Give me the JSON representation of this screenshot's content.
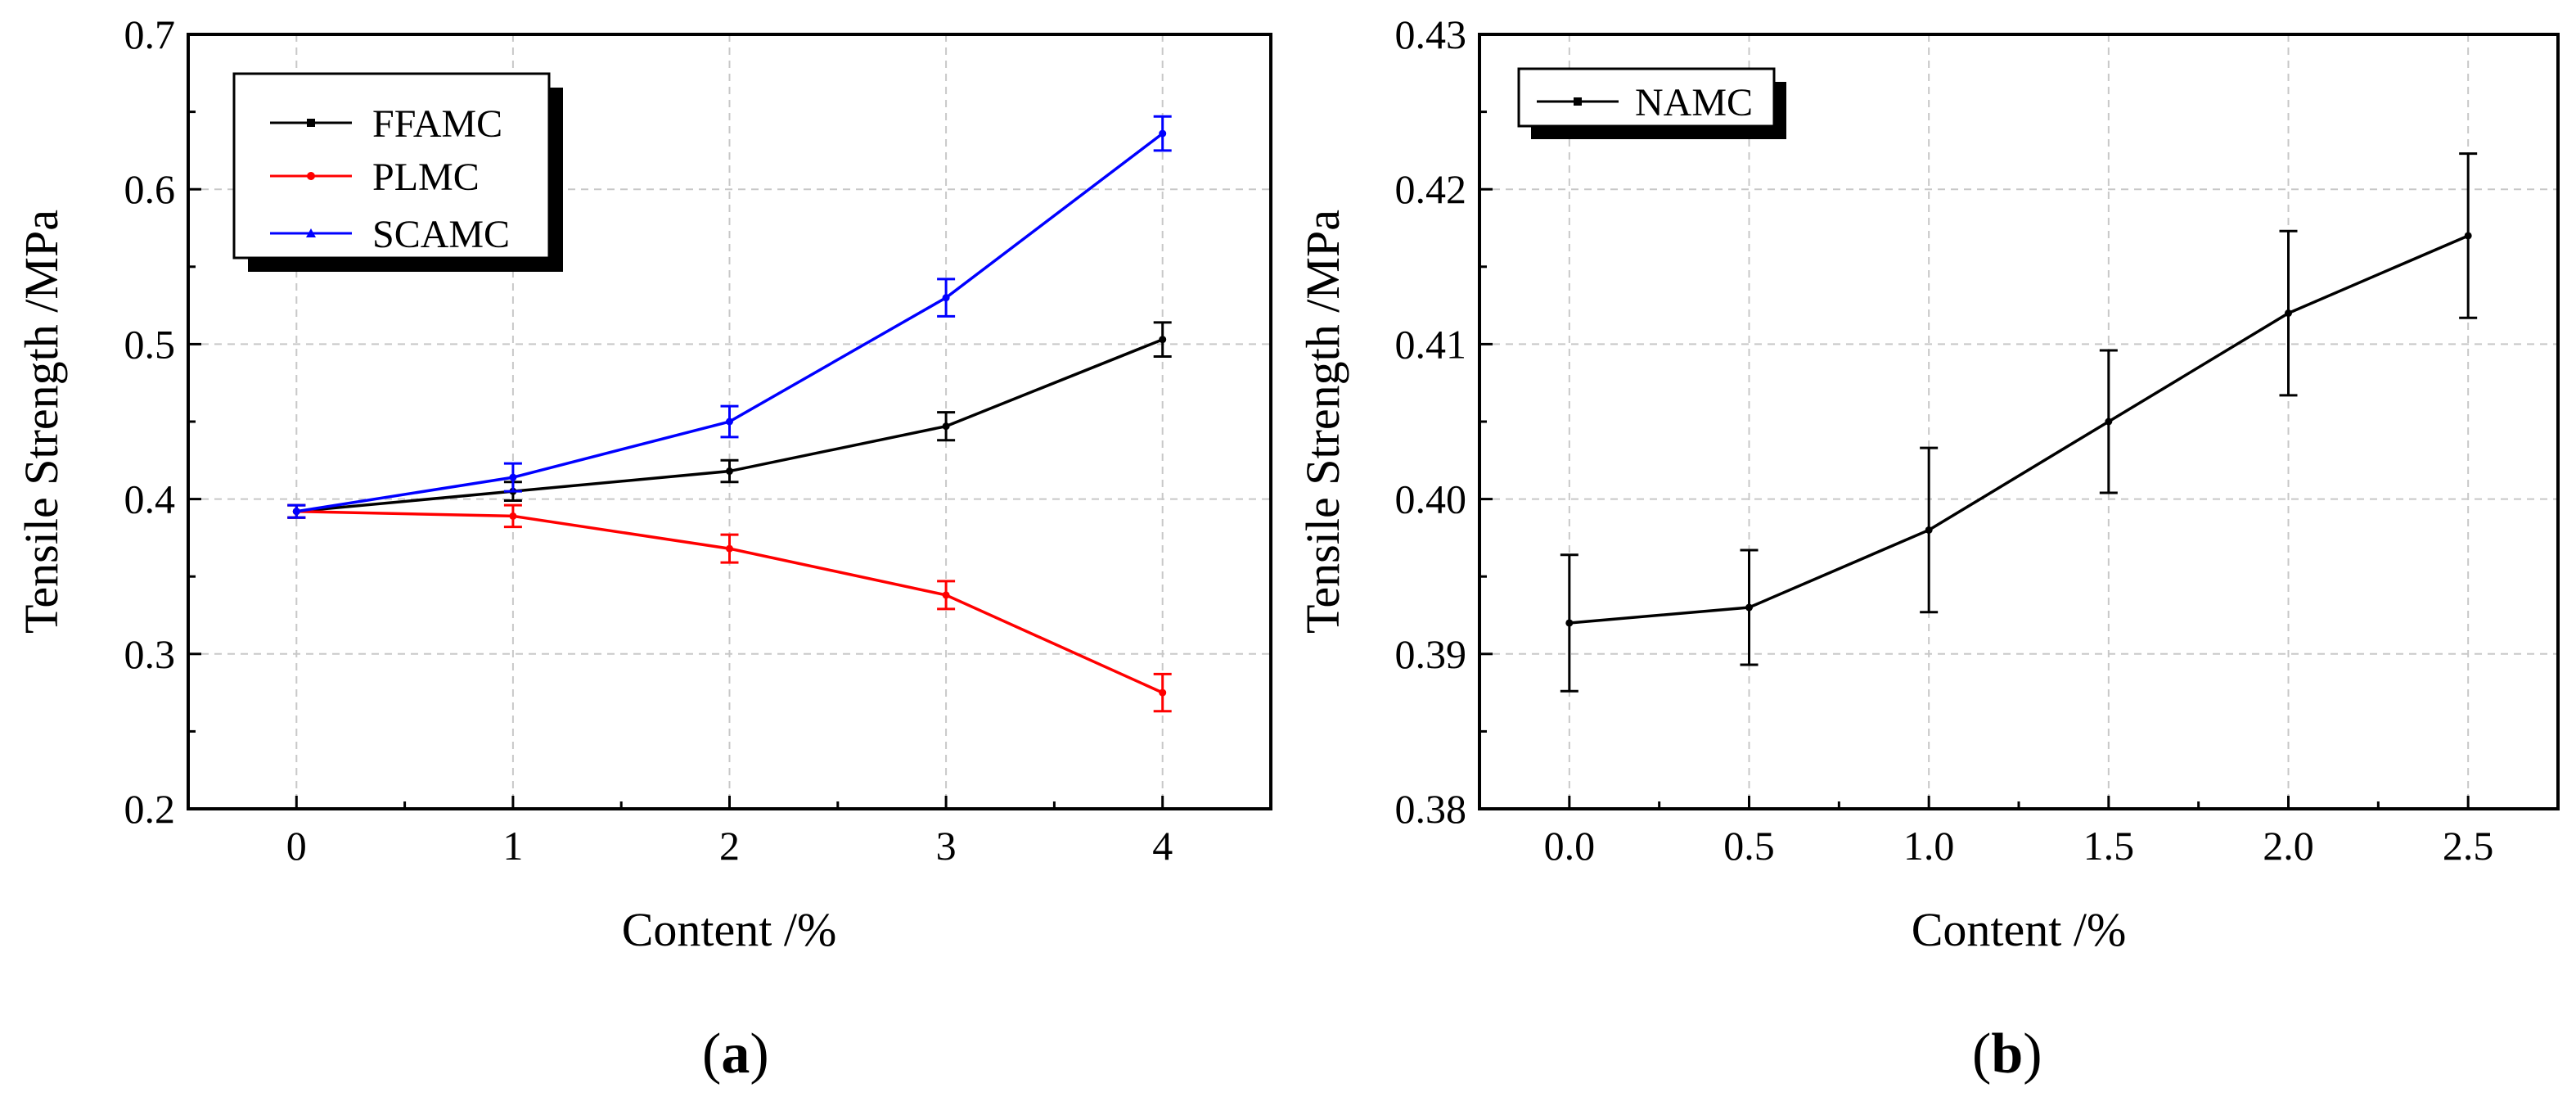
{
  "colors": {
    "ffamc": "#000000",
    "plmc": "#ff0000",
    "scamc": "#0000ff",
    "namc": "#000000",
    "grid": "#c8c8c8"
  },
  "chart_data": [
    {
      "panel_label": "a",
      "type": "line",
      "xlabel": "Content /%",
      "ylabel": "Tensile Strength /MPa",
      "xlim": [
        -0.5,
        4.5
      ],
      "ylim": [
        0.2,
        0.7
      ],
      "x_ticks": [
        0,
        1,
        2,
        3,
        4
      ],
      "x_tick_labels": [
        "0",
        "1",
        "2",
        "3",
        "4"
      ],
      "y_ticks": [
        0.2,
        0.3,
        0.4,
        0.5,
        0.6,
        0.7
      ],
      "y_tick_labels": [
        "0.2",
        "0.3",
        "0.4",
        "0.5",
        "0.6",
        "0.7"
      ],
      "grid": true,
      "legend_position": "top-left",
      "x": [
        0,
        1,
        2,
        3,
        4
      ],
      "series": [
        {
          "name": "FFAMC",
          "color_key": "ffamc",
          "values": [
            0.392,
            0.405,
            0.418,
            0.447,
            0.503
          ],
          "errors": [
            0.004,
            0.006,
            0.007,
            0.009,
            0.011
          ]
        },
        {
          "name": "PLMC",
          "color_key": "plmc",
          "values": [
            0.392,
            0.389,
            0.368,
            0.338,
            0.275
          ],
          "errors": [
            0.004,
            0.007,
            0.009,
            0.009,
            0.012
          ]
        },
        {
          "name": "SCAMC",
          "color_key": "scamc",
          "values": [
            0.392,
            0.414,
            0.45,
            0.53,
            0.636
          ],
          "errors": [
            0.004,
            0.009,
            0.01,
            0.012,
            0.011
          ]
        }
      ]
    },
    {
      "panel_label": "b",
      "type": "line",
      "xlabel": "Content /%",
      "ylabel": "Tensile Strength /MPa",
      "xlim": [
        -0.25,
        2.75
      ],
      "ylim": [
        0.38,
        0.43
      ],
      "x_ticks": [
        0,
        0.5,
        1,
        1.5,
        2,
        2.5
      ],
      "x_tick_labels": [
        "0.0",
        "0.5",
        "1.0",
        "1.5",
        "2.0",
        "2.5"
      ],
      "y_ticks": [
        0.38,
        0.39,
        0.4,
        0.41,
        0.42,
        0.43
      ],
      "y_tick_labels": [
        "0.38",
        "0.39",
        "0.40",
        "0.41",
        "0.42",
        "0.43"
      ],
      "grid": true,
      "legend_position": "top-left",
      "x": [
        0,
        0.5,
        1,
        1.5,
        2,
        2.5
      ],
      "series": [
        {
          "name": "NAMC",
          "color_key": "namc",
          "values": [
            0.392,
            0.393,
            0.398,
            0.405,
            0.412,
            0.417
          ],
          "errors": [
            0.0044,
            0.0037,
            0.0053,
            0.0046,
            0.0053,
            0.0053
          ]
        }
      ]
    }
  ]
}
